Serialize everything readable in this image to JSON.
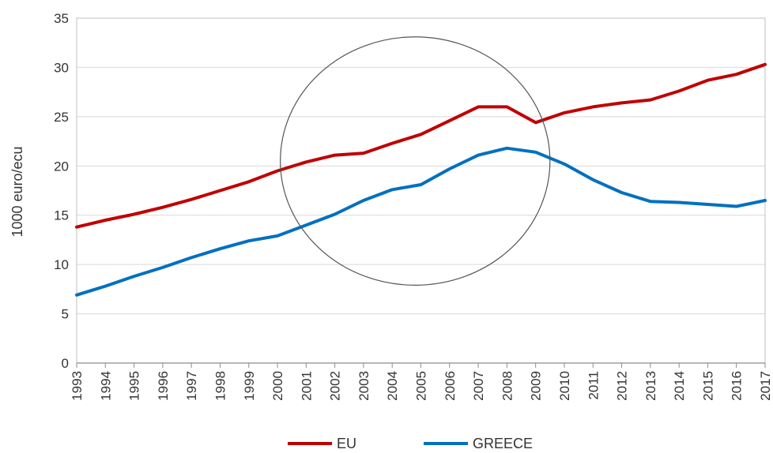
{
  "chart_data": {
    "type": "line",
    "title": "",
    "xlabel": "",
    "ylabel": "1000 euro/ecu",
    "x": [
      "1993",
      "1994",
      "1995",
      "1996",
      "1997",
      "1998",
      "1999",
      "2000",
      "2001",
      "2002",
      "2003",
      "2004",
      "2005",
      "2006",
      "2007",
      "2008",
      "2009",
      "2010",
      "2011",
      "2012",
      "2013",
      "2014",
      "2015",
      "2016",
      "2017"
    ],
    "ylim": [
      0,
      35
    ],
    "yticks": [
      0,
      5,
      10,
      15,
      20,
      25,
      30,
      35
    ],
    "grid": true,
    "legend_position": "bottom",
    "series": [
      {
        "name": "EU",
        "color": "#c00000",
        "values": [
          13.8,
          14.5,
          15.1,
          15.8,
          16.6,
          17.5,
          18.4,
          19.5,
          20.4,
          21.1,
          21.3,
          22.3,
          23.2,
          24.6,
          26.0,
          26.0,
          24.4,
          25.4,
          26.0,
          26.4,
          26.7,
          27.6,
          28.7,
          29.3,
          30.3
        ]
      },
      {
        "name": "GREECE",
        "color": "#0070c0",
        "values": [
          6.9,
          7.8,
          8.8,
          9.7,
          10.7,
          11.6,
          12.4,
          12.9,
          14.0,
          15.1,
          16.5,
          17.6,
          18.1,
          19.7,
          21.1,
          21.8,
          21.4,
          20.2,
          18.6,
          17.3,
          16.4,
          16.3,
          16.1,
          15.9,
          16.5
        ]
      }
    ],
    "annotations": [
      {
        "type": "ellipse",
        "description": "circle highlighting 2000-2009",
        "x_center": 2004.8,
        "y_center": 20.5,
        "x_radius": 4.7,
        "y_radius": 12.6,
        "color": "#555555"
      }
    ]
  }
}
